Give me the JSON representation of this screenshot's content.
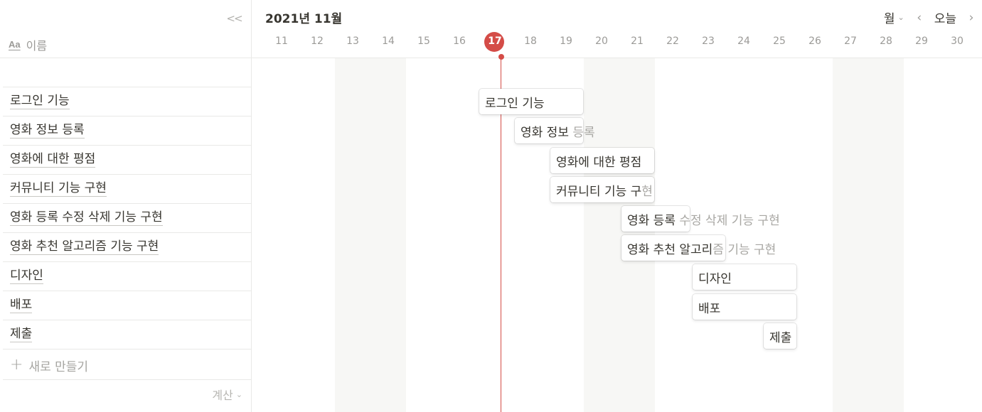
{
  "sidebar": {
    "collapse_icon": "double-chevron-left-icon",
    "name_header_icon": "text-property-icon",
    "name_header_icon_text": "Aa",
    "name_header_label": "이름",
    "rows": [
      {
        "label": ""
      },
      {
        "label": "로그인 기능"
      },
      {
        "label": "영화 정보 등록"
      },
      {
        "label": "영화에 대한 평점"
      },
      {
        "label": "커뮤니티 기능 구현"
      },
      {
        "label": "영화 등록 수정 삭제 기능 구현"
      },
      {
        "label": "영화 추천 알고리즘 기능 구현"
      },
      {
        "label": "디자인"
      },
      {
        "label": "배포"
      },
      {
        "label": "제출"
      }
    ],
    "new_plus": "+",
    "new_label": "새로 만들기",
    "calc_label": "계산",
    "calc_chevron": "⌄"
  },
  "timeline": {
    "month_title": "2021년 11월",
    "view_label": "월",
    "view_chevron": "⌄",
    "prev_arrow": "‹",
    "next_arrow": "›",
    "today_label": "오늘",
    "today_date": "17",
    "days": [
      "11",
      "12",
      "13",
      "14",
      "15",
      "16",
      "17",
      "18",
      "19",
      "20",
      "21",
      "22",
      "23",
      "24",
      "25",
      "26",
      "27",
      "28",
      "29",
      "30"
    ],
    "weekend_days": [
      "13",
      "14",
      "20",
      "21",
      "27",
      "28"
    ],
    "accent_color": "#d44c47",
    "tasks": [
      {
        "name": "로그인 기능",
        "row": 1,
        "start_day": 17,
        "end_day": 19,
        "visible": "로그인 기능",
        "overflow": ""
      },
      {
        "name": "영화 정보 등록",
        "row": 2,
        "start_day": 18,
        "end_day": 19,
        "visible": "영화 정보 ",
        "overflow": "등록"
      },
      {
        "name": "영화에 대한 평점",
        "row": 3,
        "start_day": 19,
        "end_day": 21,
        "visible": "영화에 대한 평점",
        "overflow": ""
      },
      {
        "name": "커뮤니티 기능 구현",
        "row": 4,
        "start_day": 19,
        "end_day": 21,
        "visible": "커뮤니티 기능 구",
        "overflow": "현"
      },
      {
        "name": "영화 등록 수정 삭제 기능 구현",
        "row": 5,
        "start_day": 21,
        "end_day": 22,
        "visible": "영화 등록 ",
        "overflow": "수정 삭제 기능 구현"
      },
      {
        "name": "영화 추천 알고리즘 기능 구현",
        "row": 6,
        "start_day": 21,
        "end_day": 23,
        "visible": "영화 추천 알고리",
        "overflow": "즘 기능 구현"
      },
      {
        "name": "디자인",
        "row": 7,
        "start_day": 23,
        "end_day": 25,
        "visible": "디자인",
        "overflow": ""
      },
      {
        "name": "배포",
        "row": 8,
        "start_day": 23,
        "end_day": 25,
        "visible": "배포",
        "overflow": ""
      },
      {
        "name": "제출",
        "row": 9,
        "start_day": 25,
        "end_day": 25,
        "visible": "제출",
        "overflow": ""
      }
    ]
  }
}
